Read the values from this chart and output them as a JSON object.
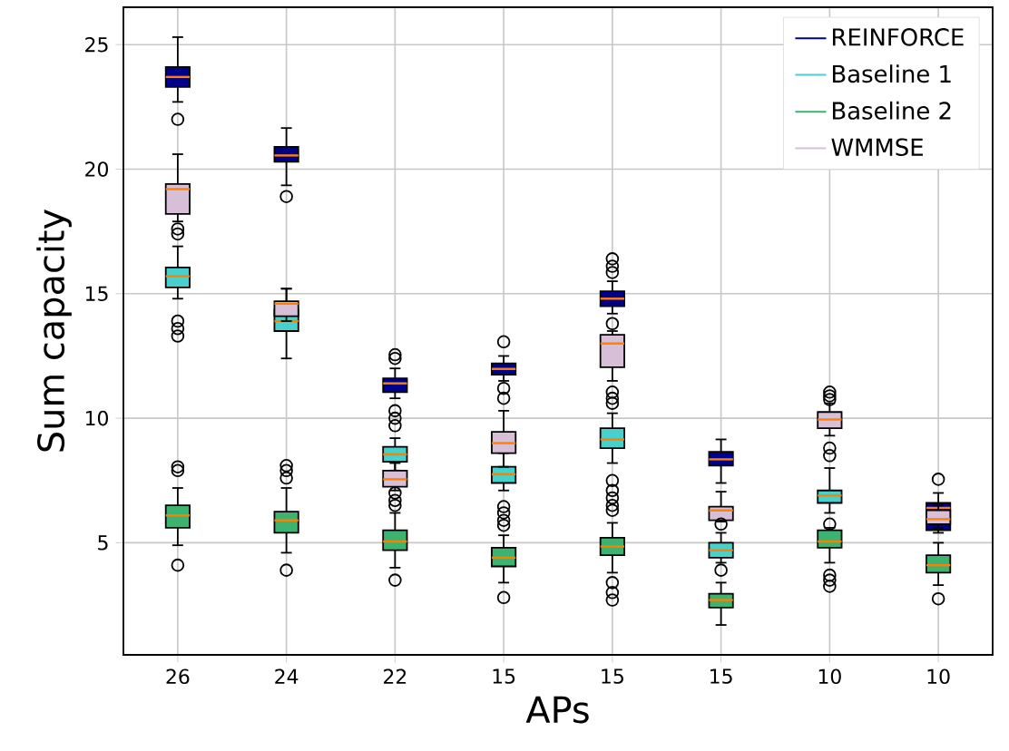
{
  "chart_data": {
    "type": "box",
    "xlabel": "APs",
    "ylabel": "Sum capacity",
    "categories": [
      "26",
      "24",
      "22",
      "15",
      "15",
      "15",
      "10",
      "10"
    ],
    "ylim": [
      0.5,
      26.5
    ],
    "yticks": [
      5,
      10,
      15,
      20,
      25
    ],
    "grid": true,
    "legend": "top right",
    "series": [
      {
        "name": "REINFORCE",
        "color": "#00008b",
        "boxes": [
          {
            "low": 22.7,
            "q1": 23.3,
            "median": 23.7,
            "q3": 24.1,
            "high": 25.3,
            "outliers": [
              22.0
            ]
          },
          {
            "low": 19.35,
            "q1": 20.3,
            "median": 20.55,
            "q3": 20.9,
            "high": 21.65,
            "outliers": [
              18.9
            ]
          },
          {
            "low": 10.8,
            "q1": 11.05,
            "median": 11.4,
            "q3": 11.6,
            "high": 12.0,
            "outliers": [
              12.55,
              12.4,
              10.3,
              10.0,
              9.7
            ]
          },
          {
            "low": 11.5,
            "q1": 11.75,
            "median": 11.98,
            "q3": 12.2,
            "high": 12.5,
            "outliers": [
              13.07,
              11.2,
              10.8
            ]
          },
          {
            "low": 14.2,
            "q1": 14.5,
            "median": 14.8,
            "q3": 15.1,
            "high": 15.5,
            "outliers": [
              16.4,
              16.1,
              15.85
            ]
          },
          {
            "low": 7.4,
            "q1": 8.1,
            "median": 8.35,
            "q3": 8.65,
            "high": 9.15
          },
          null,
          {
            "low": 5.4,
            "q1": 5.5,
            "median": 6.4,
            "q3": 6.6,
            "high": 7.0,
            "outliers": [
              7.55
            ]
          }
        ]
      },
      {
        "name": "Baseline 1",
        "color": "#48d1cc",
        "boxes": [
          {
            "low": 14.8,
            "q1": 15.25,
            "median": 15.7,
            "q3": 16.05,
            "high": 16.9,
            "outliers": [
              13.9,
              13.6,
              13.3
            ]
          },
          {
            "low": 12.4,
            "q1": 13.5,
            "median": 13.9,
            "q3": 14.35,
            "high": 15.2
          },
          {
            "low": 7.9,
            "q1": 8.25,
            "median": 8.55,
            "q3": 8.85,
            "high": 9.2
          },
          {
            "low": 7.1,
            "q1": 7.4,
            "median": 7.75,
            "q3": 8.05,
            "high": 8.6,
            "outliers": [
              6.45,
              6.2,
              5.9,
              5.7
            ]
          },
          {
            "low": 8.2,
            "q1": 8.8,
            "median": 9.15,
            "q3": 9.6,
            "high": 10.2,
            "outliers": [
              7.5,
              7.1,
              6.8,
              6.5,
              6.3
            ]
          },
          {
            "low": 4.2,
            "q1": 4.4,
            "median": 4.7,
            "q3": 5.0,
            "high": 5.4,
            "outliers": [
              3.9
            ]
          },
          {
            "low": 6.2,
            "q1": 6.6,
            "median": 6.9,
            "q3": 7.1,
            "high": 8.0,
            "outliers": [
              5.75
            ]
          },
          null
        ]
      },
      {
        "name": "Baseline 2",
        "color": "#3cb371",
        "boxes": [
          {
            "low": 4.9,
            "q1": 5.6,
            "median": 6.1,
            "q3": 6.5,
            "high": 7.2,
            "outliers": [
              8.05,
              7.9,
              4.1
            ]
          },
          {
            "low": 4.6,
            "q1": 5.4,
            "median": 5.9,
            "q3": 6.25,
            "high": 7.2,
            "outliers": [
              8.1,
              7.9,
              7.6,
              3.9
            ]
          },
          {
            "low": 4.0,
            "q1": 4.7,
            "median": 5.05,
            "q3": 5.5,
            "high": 6.2,
            "outliers": [
              3.5
            ]
          },
          {
            "low": 3.4,
            "q1": 4.05,
            "median": 4.4,
            "q3": 4.8,
            "high": 5.3,
            "outliers": [
              2.8
            ]
          },
          {
            "low": 3.8,
            "q1": 4.5,
            "median": 4.85,
            "q3": 5.2,
            "high": 5.8,
            "outliers": [
              3.4,
              3.0,
              2.7
            ]
          },
          {
            "low": 1.7,
            "q1": 2.4,
            "median": 2.7,
            "q3": 2.95,
            "high": 3.4
          },
          {
            "low": 4.2,
            "q1": 4.8,
            "median": 5.05,
            "q3": 5.5,
            "high": 5.6,
            "outliers": [
              3.7,
              3.5,
              3.25
            ]
          },
          {
            "low": 3.3,
            "q1": 3.8,
            "median": 4.1,
            "q3": 4.5,
            "high": 5.0,
            "outliers": [
              2.75
            ]
          }
        ]
      },
      {
        "name": "WMMSE",
        "color": "#d8bfd8",
        "boxes": [
          {
            "low": 17.9,
            "q1": 18.2,
            "median": 19.2,
            "q3": 19.4,
            "high": 20.6,
            "outliers": [
              17.6,
              17.4
            ]
          },
          {
            "low": 13.9,
            "q1": 14.1,
            "median": 14.6,
            "q3": 14.7,
            "high": 15.2
          },
          {
            "low": 7.1,
            "q1": 7.25,
            "median": 7.55,
            "q3": 7.9,
            "high": 8.2,
            "outliers": [
              7.0,
              6.7,
              6.5
            ]
          },
          {
            "low": 8.05,
            "q1": 8.6,
            "median": 9.0,
            "q3": 9.45,
            "high": 10.3
          },
          {
            "low": 11.5,
            "q1": 12.05,
            "median": 13.0,
            "q3": 13.35,
            "high": 13.5,
            "outliers": [
              13.8,
              11.05,
              10.8,
              10.6
            ]
          },
          {
            "low": 5.85,
            "q1": 5.9,
            "median": 6.3,
            "q3": 6.45,
            "high": 7.05,
            "outliers": [
              5.75
            ]
          },
          {
            "low": 9.3,
            "q1": 9.6,
            "median": 9.95,
            "q3": 10.25,
            "high": 10.6,
            "outliers": [
              11.05,
              10.9,
              10.75,
              8.8,
              8.5
            ]
          },
          {
            "low": 5.6,
            "q1": 5.75,
            "median": 5.95,
            "q3": 6.3,
            "high": 6.5
          }
        ]
      }
    ]
  }
}
